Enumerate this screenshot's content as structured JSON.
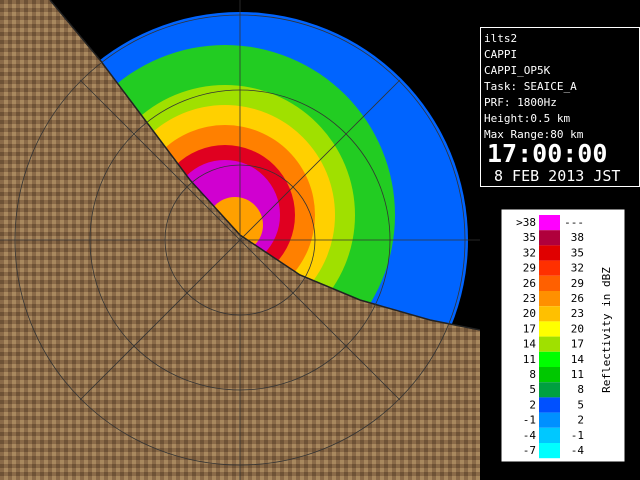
{
  "info": {
    "station": "ilts2",
    "product": "CAPPI",
    "product_name": "CAPPI_OP5K",
    "task": "Task: SEAICE_A",
    "prf": "PRF: 1800Hz",
    "height": "Height:0.5 km",
    "max_range": "Max Range:80 km",
    "time": "17:00:00",
    "date": "8 FEB 2013 JST"
  },
  "legend": {
    "title": "Reflectivity in dBZ",
    "rows": [
      {
        "low": ">38",
        "high": "---",
        "color": "#ff00ff"
      },
      {
        "low": "35",
        "high": "38",
        "color": "#b0003c"
      },
      {
        "low": "32",
        "high": "35",
        "color": "#e00000"
      },
      {
        "low": "29",
        "high": "32",
        "color": "#ff3000"
      },
      {
        "low": "26",
        "high": "29",
        "color": "#ff6000"
      },
      {
        "low": "23",
        "high": "26",
        "color": "#ff9000"
      },
      {
        "low": "20",
        "high": "23",
        "color": "#ffc000"
      },
      {
        "low": "17",
        "high": "20",
        "color": "#ffff00"
      },
      {
        "low": "14",
        "high": "17",
        "color": "#a0e000"
      },
      {
        "low": "11",
        "high": "14",
        "color": "#00ff00"
      },
      {
        "low": "8",
        "high": "11",
        "color": "#00c800"
      },
      {
        "low": "5",
        "high": "8",
        "color": "#00a040"
      },
      {
        "low": "2",
        "high": "5",
        "color": "#0050ff"
      },
      {
        "low": "-1",
        "high": "2",
        "color": "#0090ff"
      },
      {
        "low": "-4",
        "high": "-1",
        "color": "#00c8ff"
      },
      {
        "low": "-7",
        "high": "-4",
        "color": "#00ffff"
      }
    ]
  }
}
